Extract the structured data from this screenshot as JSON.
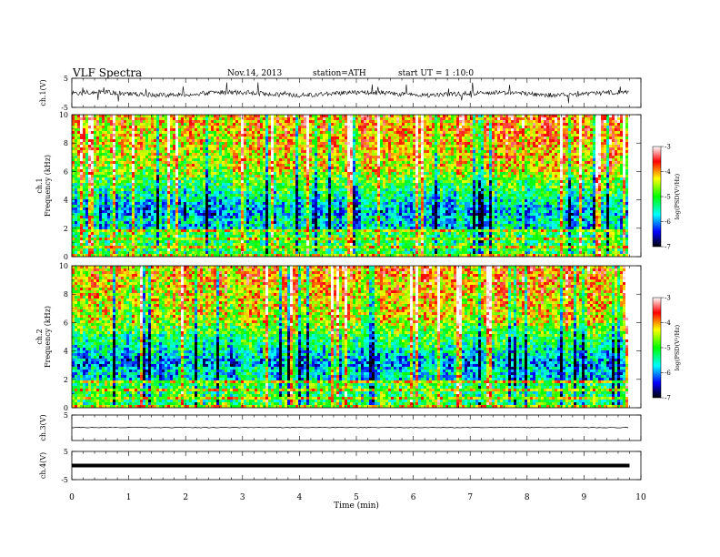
{
  "header": {
    "title": "VLF  Spectra",
    "date": "Nov.14, 2013",
    "station": "station=ATH",
    "start": "start  UT =   1  :10:0"
  },
  "colorbar": {
    "label": "log(PSD(V²/Hz)",
    "ticks": [
      "-3",
      "-4",
      "-5",
      "-6",
      "-7"
    ],
    "colors": [
      "#ffffff",
      "#ff0000",
      "#ffff00",
      "#00ff00",
      "#00ffff",
      "#0000ff",
      "#000000"
    ]
  },
  "chart_data": {
    "type": "heatmap",
    "xlabel": "Time  (min)",
    "xlim": [
      0,
      10
    ],
    "x_ticks": [
      "0",
      "1",
      "2",
      "3",
      "4",
      "5",
      "6",
      "7",
      "8",
      "9",
      "10"
    ],
    "data_end_min": 9.8,
    "panels": [
      {
        "kind": "waveform",
        "ylabel": "ch.1(V)",
        "ylim": [
          -5,
          5
        ],
        "y_ticks": [
          "5",
          "-5"
        ],
        "level": -0.3
      },
      {
        "kind": "spectrogram",
        "ylabel": "ch.1\nFrequency (kHz)",
        "ylim": [
          0,
          10
        ],
        "y_ticks": [
          "10",
          "8",
          "6",
          "4",
          "2",
          "0"
        ],
        "zlim": [
          -7,
          -3
        ],
        "zlabel": "log(PSD(V²/Hz)"
      },
      {
        "kind": "spectrogram",
        "ylabel": "ch.2\nFrequency (kHz)",
        "ylim": [
          0,
          10
        ],
        "y_ticks": [
          "10",
          "8",
          "6",
          "4",
          "2",
          "0"
        ],
        "zlim": [
          -7,
          -3
        ],
        "zlabel": "log(PSD(V²/Hz)"
      },
      {
        "kind": "waveform",
        "ylabel": "ch.3(V)",
        "ylim": [
          -5,
          5
        ],
        "y_ticks": [
          "5"
        ],
        "level": 0.1
      },
      {
        "kind": "waveform",
        "ylabel": "ch.4(V)",
        "ylim": [
          -5,
          5
        ],
        "y_ticks": [
          "5",
          "-5"
        ],
        "level": 0.0
      }
    ]
  }
}
